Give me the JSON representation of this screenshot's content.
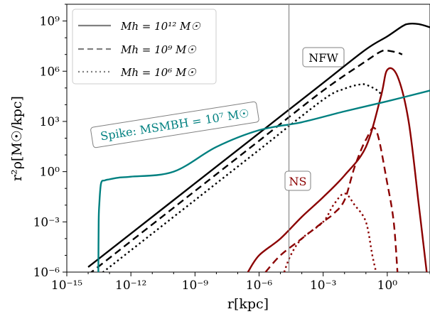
{
  "chart_data": {
    "type": "line",
    "xlabel": "r[kpc]",
    "ylabel": "r²ρ[M☉/kpc]",
    "xscale": "log",
    "yscale": "log",
    "xlim": [
      1e-15,
      100
    ],
    "ylim": [
      1e-06,
      10000000000.0
    ],
    "x_ticks": [
      {
        "value": 1e-15,
        "label": "10⁻¹⁵"
      },
      {
        "value": 1e-12,
        "label": "10⁻¹²"
      },
      {
        "value": 1e-09,
        "label": "10⁻⁹"
      },
      {
        "value": 1e-06,
        "label": "10⁻⁶"
      },
      {
        "value": 0.001,
        "label": "10⁻³"
      },
      {
        "value": 1,
        "label": "10⁰"
      }
    ],
    "y_ticks": [
      {
        "value": 1e-06,
        "label": "10⁻⁶"
      },
      {
        "value": 0.001,
        "label": "10⁻³"
      },
      {
        "value": 1,
        "label": "10⁰"
      },
      {
        "value": 1000.0,
        "label": "10³"
      },
      {
        "value": 1000000.0,
        "label": "10⁶"
      },
      {
        "value": 1000000000.0,
        "label": "10⁹"
      }
    ],
    "vline_x": 2.5e-05,
    "legend": {
      "placement": "upper-left",
      "entries": [
        {
          "label": "Mh = 10¹² M☉",
          "style": "solid"
        },
        {
          "label": "Mh = 10⁹ M☉",
          "style": "dashed"
        },
        {
          "label": "Mh = 10⁶ M☉",
          "style": "dotted"
        }
      ]
    },
    "annotations": {
      "nfw": "NFW",
      "ns": "NS",
      "spike": "Spike: MSMBH = 10⁷ M☉"
    },
    "colors": {
      "nfw": "#000000",
      "ns": "#8b0000",
      "spike": "#008080",
      "vline": "#808080",
      "legend_line": "#808080"
    },
    "series": [
      {
        "group": "nfw",
        "style": "solid",
        "x": [
          1e-14,
          1e-12,
          1e-09,
          1e-06,
          0.001,
          0.1,
          1,
          5,
          10,
          30,
          100
        ],
        "y": [
          2e-06,
          0.0002,
          0.2,
          200.0,
          200000.0,
          20000000.0,
          120000000.0,
          480000000.0,
          680000000.0,
          650000000.0,
          420000000.0
        ]
      },
      {
        "group": "nfw",
        "style": "dashed",
        "x": [
          1e-14,
          1e-12,
          1e-09,
          1e-06,
          0.001,
          0.1,
          0.5,
          1,
          3,
          5
        ],
        "y": [
          7e-07,
          7e-05,
          0.07,
          70,
          70000.0,
          4000000.0,
          15000000.0,
          17000000.0,
          13000000.0,
          10000000.0
        ],
        "y_axis_note": "peak below 1e9 label"
      },
      {
        "group": "nfw",
        "style": "dotted",
        "x": [
          1e-14,
          1e-12,
          1e-09,
          1e-06,
          0.001,
          0.01,
          0.05,
          0.1,
          0.3,
          0.6
        ],
        "y": [
          2e-07,
          2e-05,
          0.02,
          20,
          20000.0,
          90000.0,
          160000.0,
          155000.0,
          80000.0,
          35000.0
        ]
      },
      {
        "group": "ns",
        "style": "solid",
        "x": [
          3e-07,
          1e-06,
          1e-05,
          0.0001,
          0.001,
          0.01,
          0.1,
          0.5,
          1,
          3,
          10,
          30,
          70
        ],
        "y": [
          1e-06,
          1e-05,
          0.0001,
          0.002,
          0.03,
          0.6,
          30.0,
          30000.0,
          1200000.0,
          500000.0,
          1000.0,
          0.01,
          1e-06
        ]
      },
      {
        "group": "ns",
        "style": "dashed",
        "x": [
          2e-06,
          1e-05,
          0.0001,
          0.001,
          0.003,
          0.01,
          0.03,
          0.1,
          0.3,
          1,
          2,
          3
        ],
        "y": [
          1e-06,
          1e-05,
          0.0001,
          0.001,
          0.003,
          0.02,
          2.0,
          80.0,
          300.0,
          0.2,
          0.001,
          1e-06
        ]
      },
      {
        "group": "ns",
        "style": "dotted",
        "x": [
          1.5e-05,
          3e-05,
          0.0001,
          0.001,
          0.003,
          0.01,
          0.03,
          0.1,
          0.2,
          0.3
        ],
        "y": [
          1e-06,
          1e-05,
          0.0001,
          0.001,
          0.01,
          0.05,
          0.01,
          0.001,
          1e-05,
          1e-06
        ]
      },
      {
        "group": "spike",
        "style": "solid",
        "x": [
          3e-14,
          3.1e-14,
          3.3e-14,
          4e-14,
          6e-14,
          1e-13,
          3e-13,
          1e-12,
          1e-10,
          1e-08,
          1e-06,
          0.0001,
          0.01,
          1,
          100
        ],
        "y": [
          1e-06,
          0.001,
          0.01,
          0.2,
          0.3,
          0.35,
          0.45,
          0.5,
          1.0,
          30.0,
          300.0,
          900.0,
          4000.0,
          16000.0,
          70000.0
        ]
      }
    ]
  }
}
